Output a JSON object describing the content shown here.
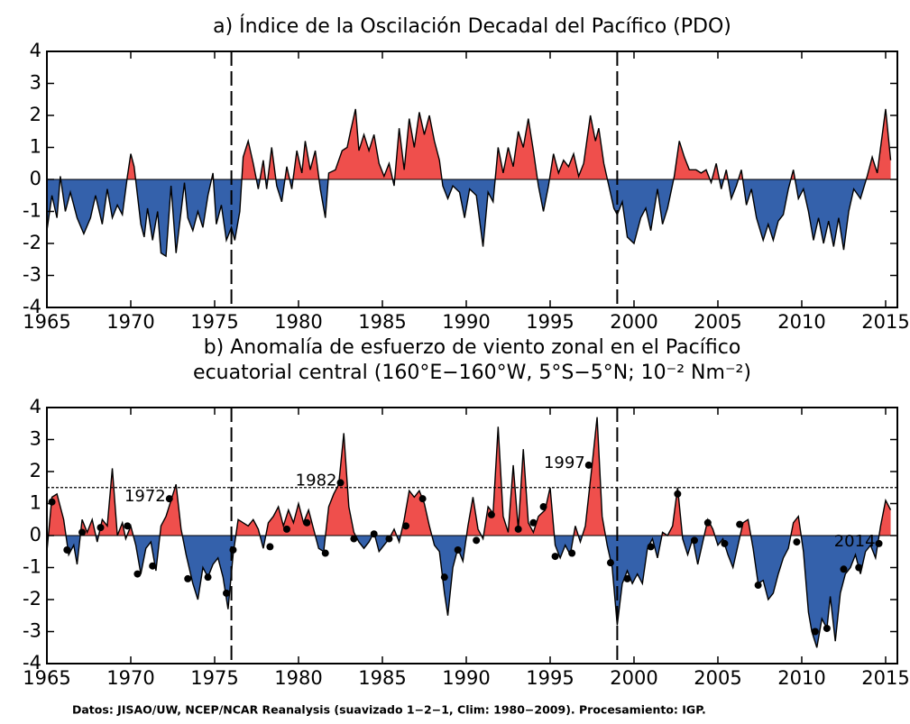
{
  "chart_data": [
    {
      "type": "area",
      "title": [
        "a) Índice de la Oscilación Decadal del Pacífico (PDO)"
      ],
      "positive_color": "#ef4f4c",
      "negative_color": "#3461ab",
      "xlim": [
        1965,
        2015.7
      ],
      "xticks": [
        1965,
        1970,
        1975,
        1980,
        1985,
        1990,
        1995,
        2000,
        2005,
        2010,
        2015
      ],
      "ylim": [
        -4,
        4
      ],
      "yticks": [
        -4,
        -3,
        -2,
        -1,
        0,
        1,
        2,
        3,
        4
      ],
      "vlines": [
        1976,
        1999
      ],
      "x": [
        1965.0,
        1965.3,
        1965.6,
        1965.8,
        1966.1,
        1966.4,
        1966.8,
        1967.2,
        1967.6,
        1967.9,
        1968.3,
        1968.6,
        1968.9,
        1969.2,
        1969.5,
        1969.8,
        1970.0,
        1970.2,
        1970.4,
        1970.6,
        1970.8,
        1971.0,
        1971.3,
        1971.6,
        1971.8,
        1972.1,
        1972.4,
        1972.7,
        1973.0,
        1973.2,
        1973.4,
        1973.7,
        1974.0,
        1974.3,
        1974.6,
        1974.9,
        1975.1,
        1975.4,
        1975.7,
        1976.0,
        1976.2,
        1976.5,
        1976.7,
        1977.0,
        1977.3,
        1977.6,
        1977.9,
        1978.1,
        1978.4,
        1978.7,
        1979.0,
        1979.3,
        1979.6,
        1979.9,
        1980.2,
        1980.4,
        1980.7,
        1981.0,
        1981.3,
        1981.6,
        1981.8,
        1982.2,
        1982.6,
        1982.9,
        1983.1,
        1983.4,
        1983.6,
        1983.9,
        1984.2,
        1984.5,
        1984.8,
        1985.1,
        1985.4,
        1985.7,
        1986.0,
        1986.3,
        1986.6,
        1986.9,
        1987.2,
        1987.5,
        1987.8,
        1988.1,
        1988.4,
        1988.6,
        1988.9,
        1989.2,
        1989.6,
        1989.9,
        1990.2,
        1990.6,
        1991.0,
        1991.3,
        1991.6,
        1991.9,
        1992.2,
        1992.5,
        1992.8,
        1993.1,
        1993.4,
        1993.7,
        1994.0,
        1994.3,
        1994.6,
        1994.9,
        1995.2,
        1995.5,
        1995.8,
        1996.1,
        1996.4,
        1996.7,
        1997.0,
        1997.4,
        1997.7,
        1997.9,
        1998.2,
        1998.5,
        1998.8,
        1999.0,
        1999.3,
        1999.6,
        2000.0,
        2000.4,
        2000.7,
        2001.0,
        2001.4,
        2001.7,
        2002.0,
        2002.4,
        2002.7,
        2003.0,
        2003.3,
        2003.7,
        2004.0,
        2004.3,
        2004.6,
        2004.9,
        2005.2,
        2005.5,
        2005.8,
        2006.1,
        2006.4,
        2006.7,
        2007.0,
        2007.3,
        2007.7,
        2008.0,
        2008.3,
        2008.6,
        2008.9,
        2009.2,
        2009.5,
        2009.8,
        2010.1,
        2010.4,
        2010.7,
        2011.0,
        2011.3,
        2011.6,
        2011.9,
        2012.2,
        2012.5,
        2012.8,
        2013.1,
        2013.5,
        2013.9,
        2014.2,
        2014.5,
        2014.8,
        2015.0,
        2015.3
      ],
      "values": [
        -1.6,
        -0.5,
        -1.2,
        0.1,
        -1.0,
        -0.4,
        -1.2,
        -1.7,
        -1.2,
        -0.5,
        -1.4,
        -0.3,
        -1.2,
        -0.8,
        -1.1,
        0.1,
        0.8,
        0.4,
        -0.5,
        -1.4,
        -1.8,
        -0.9,
        -1.9,
        -1.0,
        -2.3,
        -2.4,
        -0.2,
        -2.3,
        -1.0,
        -0.1,
        -1.2,
        -1.6,
        -1.0,
        -1.5,
        -0.5,
        0.2,
        -1.4,
        -0.8,
        -1.9,
        -1.5,
        -1.9,
        -1.0,
        0.7,
        1.2,
        0.5,
        -0.3,
        0.6,
        -0.3,
        1.0,
        -0.2,
        -0.7,
        0.4,
        -0.3,
        0.9,
        0.2,
        1.2,
        0.3,
        0.9,
        -0.3,
        -1.2,
        0.2,
        0.3,
        0.9,
        1.0,
        1.5,
        2.2,
        0.9,
        1.4,
        0.9,
        1.4,
        0.5,
        0.1,
        0.5,
        -0.2,
        1.6,
        0.3,
        1.9,
        1.0,
        2.1,
        1.4,
        2.0,
        1.2,
        0.6,
        -0.2,
        -0.6,
        -0.2,
        -0.4,
        -1.2,
        -0.3,
        -0.5,
        -2.1,
        -0.4,
        -0.7,
        1.0,
        0.2,
        1.0,
        0.4,
        1.5,
        1.0,
        1.9,
        0.9,
        -0.2,
        -1.0,
        -0.2,
        0.8,
        0.2,
        0.6,
        0.4,
        0.8,
        0.1,
        0.5,
        2.0,
        1.2,
        1.6,
        0.5,
        -0.2,
        -0.9,
        -1.1,
        -0.7,
        -1.8,
        -2.0,
        -1.2,
        -0.9,
        -1.6,
        -0.3,
        -1.4,
        -0.9,
        0.1,
        1.2,
        0.7,
        0.3,
        0.3,
        0.2,
        0.3,
        -0.1,
        0.5,
        -0.3,
        0.3,
        -0.6,
        -0.2,
        0.3,
        -0.8,
        -0.3,
        -1.2,
        -1.9,
        -1.4,
        -1.9,
        -1.3,
        -1.1,
        -0.3,
        0.3,
        -0.6,
        -0.3,
        -1.0,
        -1.9,
        -1.2,
        -2.0,
        -1.3,
        -2.1,
        -1.2,
        -2.2,
        -1.0,
        -0.3,
        -0.6,
        0.1,
        0.7,
        0.2,
        1.4,
        2.2,
        0.6
      ]
    },
    {
      "type": "area",
      "title": [
        "b) Anomalía de esfuerzo de viento zonal en el Pacífico",
        "ecuatorial central (160°E−160°W, 5°S−5°N; 10⁻² Nm⁻²)"
      ],
      "positive_color": "#ef4f4c",
      "negative_color": "#3461ab",
      "xlim": [
        1965,
        2015.7
      ],
      "xticks": [
        1965,
        1970,
        1975,
        1980,
        1985,
        1990,
        1995,
        2000,
        2005,
        2010,
        2015
      ],
      "ylim": [
        -4,
        4
      ],
      "yticks": [
        -4,
        -3,
        -2,
        -1,
        0,
        1,
        2,
        3,
        4
      ],
      "vlines": [
        1976,
        1999
      ],
      "hline": 1.5,
      "x": [
        1965.0,
        1965.3,
        1965.6,
        1966.0,
        1966.3,
        1966.6,
        1966.8,
        1967.1,
        1967.4,
        1967.7,
        1968.0,
        1968.3,
        1968.6,
        1968.9,
        1969.2,
        1969.5,
        1969.7,
        1970.0,
        1970.3,
        1970.6,
        1970.9,
        1971.2,
        1971.5,
        1971.8,
        1972.1,
        1972.4,
        1972.7,
        1973.0,
        1973.3,
        1973.7,
        1974.0,
        1974.3,
        1974.6,
        1974.9,
        1975.2,
        1975.5,
        1975.8,
        1976.1,
        1976.4,
        1976.7,
        1977.0,
        1977.3,
        1977.6,
        1977.9,
        1978.2,
        1978.5,
        1978.8,
        1979.1,
        1979.4,
        1979.7,
        1980.0,
        1980.3,
        1980.6,
        1980.9,
        1981.2,
        1981.5,
        1981.8,
        1982.1,
        1982.4,
        1982.7,
        1983.0,
        1983.3,
        1983.6,
        1983.9,
        1984.2,
        1984.5,
        1984.8,
        1985.1,
        1985.4,
        1985.7,
        1986.0,
        1986.3,
        1986.6,
        1986.9,
        1987.2,
        1987.5,
        1987.8,
        1988.1,
        1988.4,
        1988.7,
        1988.9,
        1989.2,
        1989.5,
        1989.8,
        1990.1,
        1990.4,
        1990.7,
        1991.0,
        1991.3,
        1991.6,
        1991.9,
        1992.2,
        1992.5,
        1992.8,
        1993.1,
        1993.4,
        1993.7,
        1994.0,
        1994.3,
        1994.7,
        1995.0,
        1995.3,
        1995.6,
        1995.9,
        1996.2,
        1996.5,
        1996.8,
        1997.1,
        1997.5,
        1997.8,
        1998.1,
        1998.4,
        1998.7,
        1999.0,
        1999.3,
        1999.6,
        1999.9,
        2000.2,
        2000.5,
        2000.8,
        2001.1,
        2001.4,
        2001.7,
        2002.0,
        2002.3,
        2002.6,
        2002.9,
        2003.2,
        2003.5,
        2003.8,
        2004.1,
        2004.4,
        2004.7,
        2005.0,
        2005.3,
        2005.6,
        2005.9,
        2006.2,
        2006.5,
        2006.8,
        2007.1,
        2007.4,
        2007.7,
        2008.0,
        2008.3,
        2008.6,
        2008.9,
        2009.2,
        2009.5,
        2009.8,
        2010.1,
        2010.4,
        2010.6,
        2010.9,
        2011.2,
        2011.5,
        2011.7,
        2012.0,
        2012.3,
        2012.6,
        2012.9,
        2013.2,
        2013.5,
        2013.8,
        2014.1,
        2014.4,
        2014.7,
        2015.0,
        2015.3
      ],
      "values": [
        -0.5,
        1.2,
        1.3,
        0.5,
        -0.6,
        -0.3,
        -0.9,
        0.5,
        0.1,
        0.5,
        -0.2,
        0.5,
        0.3,
        2.1,
        0.0,
        0.4,
        -0.1,
        0.3,
        -0.3,
        -1.2,
        -0.4,
        -0.2,
        -1.1,
        0.3,
        0.6,
        1.1,
        1.6,
        0.2,
        -0.6,
        -1.5,
        -2.0,
        -1.0,
        -1.3,
        -0.9,
        -0.7,
        -1.3,
        -2.3,
        -0.6,
        0.5,
        0.4,
        0.3,
        0.5,
        0.2,
        -0.4,
        0.4,
        0.6,
        0.9,
        0.3,
        0.8,
        0.4,
        1.0,
        0.4,
        0.8,
        0.2,
        -0.4,
        -0.5,
        0.9,
        1.3,
        1.6,
        3.2,
        0.9,
        0.1,
        -0.2,
        -0.4,
        -0.2,
        0.1,
        -0.5,
        -0.3,
        -0.1,
        0.2,
        -0.2,
        0.5,
        1.4,
        1.2,
        1.4,
        1.0,
        0.3,
        -0.3,
        -0.5,
        -1.8,
        -2.5,
        -1.0,
        -0.4,
        -0.8,
        0.3,
        1.2,
        0.2,
        -0.1,
        0.9,
        0.7,
        3.4,
        0.6,
        0.1,
        2.2,
        0.2,
        2.7,
        0.4,
        0.1,
        0.6,
        0.8,
        1.5,
        -0.3,
        -0.7,
        -0.3,
        -0.6,
        0.3,
        -0.2,
        0.3,
        2.2,
        3.7,
        0.6,
        -0.3,
        -1.0,
        -2.8,
        -1.5,
        -1.1,
        -1.5,
        -1.2,
        -1.5,
        -0.4,
        -0.1,
        -0.7,
        0.1,
        0.0,
        0.3,
        1.5,
        -0.1,
        -0.6,
        -0.1,
        -0.9,
        -0.2,
        0.5,
        0.2,
        -0.3,
        -0.1,
        -0.6,
        -1.0,
        -0.3,
        0.4,
        0.5,
        -0.4,
        -1.5,
        -1.4,
        -2.0,
        -1.8,
        -1.2,
        -0.7,
        -0.4,
        0.4,
        0.6,
        -0.5,
        -2.4,
        -3.0,
        -3.5,
        -2.6,
        -2.9,
        -1.9,
        -3.3,
        -1.8,
        -1.2,
        -1.0,
        -0.6,
        -1.2,
        -0.5,
        -0.3,
        -0.7,
        0.3,
        1.1,
        0.8
      ],
      "markers": {
        "x": [
          1965.3,
          1966.2,
          1967.1,
          1968.2,
          1969.8,
          1970.4,
          1971.3,
          1972.3,
          1973.4,
          1974.6,
          1975.7,
          1976.1,
          1978.3,
          1979.3,
          1980.5,
          1981.6,
          1982.5,
          1983.3,
          1984.5,
          1985.4,
          1986.4,
          1987.4,
          1988.7,
          1989.5,
          1990.6,
          1991.5,
          1993.1,
          1994.0,
          1994.6,
          1995.3,
          1996.3,
          1997.3,
          1998.6,
          1999.6,
          2001.0,
          2002.6,
          2003.6,
          2004.4,
          2005.4,
          2006.3,
          2007.4,
          2009.7,
          2010.8,
          2011.5,
          2012.5,
          2013.4,
          2014.6
        ],
        "values": [
          1.05,
          -0.45,
          0.1,
          0.25,
          0.3,
          -1.2,
          -0.95,
          1.15,
          -1.35,
          -1.3,
          -1.8,
          -0.45,
          -0.35,
          0.2,
          0.4,
          -0.55,
          1.65,
          -0.1,
          0.05,
          -0.1,
          0.3,
          1.15,
          -1.3,
          -0.45,
          -0.15,
          0.65,
          0.2,
          0.4,
          0.9,
          -0.65,
          -0.55,
          2.2,
          -0.85,
          -1.35,
          -0.35,
          1.3,
          -0.15,
          0.4,
          -0.25,
          0.35,
          -1.55,
          -0.2,
          -3.0,
          -2.9,
          -1.05,
          -1.0,
          -0.25
        ],
        "labels": [
          null,
          null,
          null,
          null,
          null,
          null,
          null,
          "1972",
          null,
          null,
          null,
          null,
          null,
          null,
          null,
          null,
          "1982",
          null,
          null,
          null,
          null,
          null,
          null,
          null,
          null,
          null,
          null,
          null,
          null,
          null,
          null,
          "1997",
          null,
          null,
          null,
          null,
          null,
          null,
          null,
          null,
          null,
          null,
          null,
          null,
          null,
          null,
          "2014"
        ]
      }
    }
  ],
  "source": "Datos: JISAO/UW, NCEP/NCAR Reanalysis (suavizado 1−2−1, Clim: 1980−2009). Procesamiento: IGP."
}
